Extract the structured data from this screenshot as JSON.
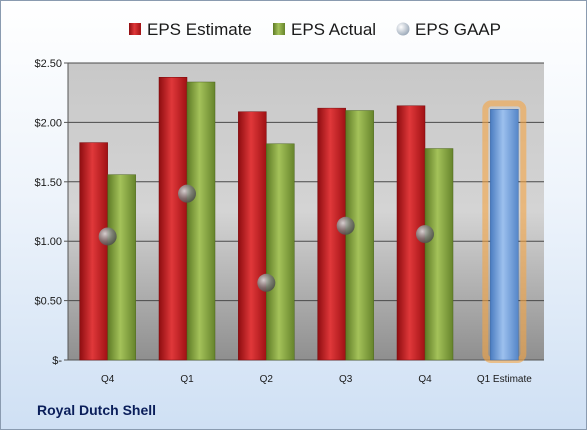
{
  "chart_data": {
    "type": "bar",
    "categories": [
      "Q4",
      "Q1",
      "Q2",
      "Q3",
      "Q4",
      "Q1 Estimate"
    ],
    "series": [
      {
        "name": "EPS Estimate",
        "values": [
          1.83,
          2.38,
          2.09,
          2.12,
          2.14,
          null
        ]
      },
      {
        "name": "EPS Actual",
        "values": [
          1.56,
          2.34,
          1.82,
          2.1,
          1.78,
          null
        ]
      },
      {
        "name": "EPS GAAP",
        "values": [
          1.04,
          1.4,
          0.65,
          1.13,
          1.06,
          null
        ]
      }
    ],
    "forecast": {
      "category": "Q1 Estimate",
      "value": 2.11
    },
    "ylim": [
      0,
      2.5
    ],
    "yticks": [
      0,
      0.5,
      1.0,
      1.5,
      2.0,
      2.5
    ],
    "ytick_labels": [
      "$-",
      "$0.50",
      "$1.00",
      "$1.50",
      "$2.00",
      "$2.50"
    ],
    "legend_position": "top",
    "grid": true,
    "colors": {
      "estimate": "#c0161a",
      "actual": "#7e9e3a",
      "gaap": "#8a8a8a",
      "forecast": "#6c9ad6",
      "forecast_glow": "#f5a545"
    }
  },
  "company": "Royal Dutch Shell"
}
